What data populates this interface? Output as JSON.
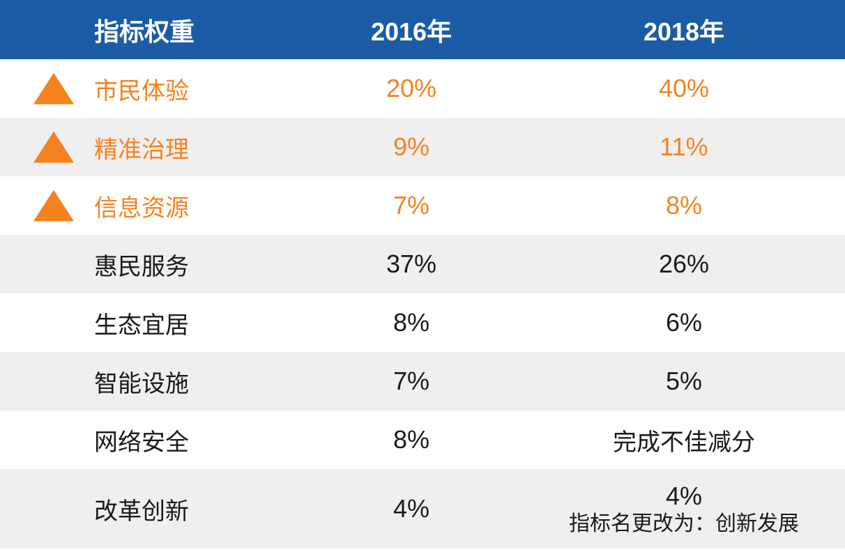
{
  "colors": {
    "header_blue": "#1c5ca6",
    "accent_orange": "#f5821f",
    "row_alt_gray": "#efefef",
    "text_black": "#1a1a1a"
  },
  "table": {
    "header": {
      "col1": "指标权重",
      "col2": "2016年",
      "col3": "2018年"
    },
    "rows": [
      {
        "label": "市民体验",
        "y2016": "20%",
        "y2018": "40%",
        "highlighted": true,
        "icon": "up-triangle-icon"
      },
      {
        "label": "精准治理",
        "y2016": "9%",
        "y2018": "11%",
        "highlighted": true,
        "icon": "up-triangle-icon"
      },
      {
        "label": "信息资源",
        "y2016": "7%",
        "y2018": "8%",
        "highlighted": true,
        "icon": "up-triangle-icon"
      },
      {
        "label": "惠民服务",
        "y2016": "37%",
        "y2018": "26%",
        "highlighted": false
      },
      {
        "label": "生态宜居",
        "y2016": "8%",
        "y2018": "6%",
        "highlighted": false
      },
      {
        "label": "智能设施",
        "y2016": "7%",
        "y2018": "5%",
        "highlighted": false
      },
      {
        "label": "网络安全",
        "y2016": "8%",
        "y2018": "完成不佳减分",
        "highlighted": false
      },
      {
        "label": "改革创新",
        "y2016": "4%",
        "y2018": "4%",
        "y2018_note": "指标名更改为：创新发展",
        "highlighted": false
      }
    ]
  },
  "chart_data": {
    "type": "table",
    "title": "指标权重",
    "columns": [
      "指标权重",
      "2016年",
      "2018年"
    ],
    "rows": [
      [
        "市民体验",
        "20%",
        "40%"
      ],
      [
        "精准治理",
        "9%",
        "11%"
      ],
      [
        "信息资源",
        "7%",
        "8%"
      ],
      [
        "惠民服务",
        "37%",
        "26%"
      ],
      [
        "生态宜居",
        "8%",
        "6%"
      ],
      [
        "智能设施",
        "7%",
        "5%"
      ],
      [
        "网络安全",
        "8%",
        "完成不佳减分"
      ],
      [
        "改革创新",
        "4%",
        "4% 指标名更改为：创新发展"
      ]
    ],
    "notes": "前三行为橙色高亮并带上升三角形图标，表示权重上升"
  }
}
